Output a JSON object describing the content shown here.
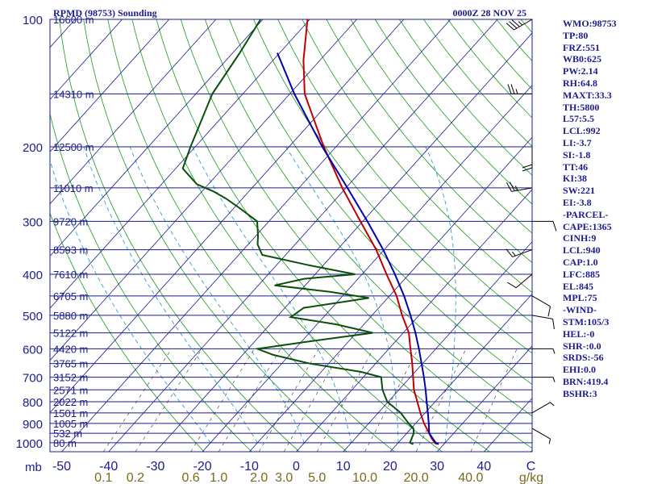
{
  "header": {
    "station": "RPMD (98753) Sounding",
    "time": "0000Z 28 NOV 25"
  },
  "indices": [
    "WMO:98753",
    "TP:80",
    "FRZ:551",
    "WB0:625",
    "PW:2.14",
    "RH:64.8",
    "MAXT:33.3",
    "TH:5800",
    "L57:5.5",
    "LCL:992",
    "LI:-3.7",
    "SI:-1.8",
    "TT:46",
    "KI:38",
    "SW:221",
    "EI:-3.8",
    "-PARCEL-",
    "CAPE:1365",
    "CINH:9",
    "LCL:940",
    "CAP:1.0",
    "LFC:885",
    "EL:845",
    "MPL:75",
    "-WIND-",
    "STM:105/3",
    "HEL:-0",
    "SHR-:0.0",
    "SRDS:-56",
    "EHI:0.0",
    "BRN:419.4",
    "BSHR:3"
  ],
  "colors": {
    "frame": "#1c1c8c",
    "isobar": "#1c1c8c",
    "isotherm": "#1c1c8c",
    "dry_adiabat": "#1a9a1a",
    "moist_adiabat": "#2aa0d0",
    "mixing_ratio": "#333333",
    "temperature": "#c00000",
    "dewpoint": "#0b4f0b",
    "parcel": "#0000b0",
    "wind_barb": "#000000"
  },
  "chart_data": {
    "type": "line",
    "title": "RPMD (98753) Sounding",
    "xlabel": "",
    "ylabel": "mb",
    "pressure_ticks": [
      100,
      200,
      300,
      400,
      500,
      600,
      700,
      800,
      900,
      1000
    ],
    "temperature_ticks": [
      -50,
      -40,
      -30,
      -20,
      -10,
      0,
      10,
      20,
      30,
      40,
      50
    ],
    "temperature_tick_labels": [
      "-50",
      "-40",
      "-30",
      "-20",
      "-10",
      "0",
      "10",
      "20",
      "30",
      "40",
      "C"
    ],
    "mixing_ratio_ticks": [
      0.1,
      0.2,
      0.6,
      1.0,
      2.0,
      3.0,
      5.0,
      10.0,
      20.0,
      40.0
    ],
    "mixing_ratio_tick_labels": [
      "0.1",
      "0.2",
      "0.6",
      "1.0",
      "2.0",
      "3.0",
      "5.0",
      "10.0",
      "20.0",
      "40.0"
    ],
    "mixing_ratio_unit": "g/kg",
    "height_levels": [
      {
        "p": 100,
        "label": "16600 m"
      },
      {
        "p": 150,
        "label": "14310 m"
      },
      {
        "p": 200,
        "label": "12500 m"
      },
      {
        "p": 250,
        "label": "11010 m"
      },
      {
        "p": 300,
        "label": "9720 m"
      },
      {
        "p": 350,
        "label": "8593 m"
      },
      {
        "p": 400,
        "label": "7610 m"
      },
      {
        "p": 450,
        "label": "6705 m"
      },
      {
        "p": 500,
        "label": "5880 m"
      },
      {
        "p": 550,
        "label": "5122 m"
      },
      {
        "p": 600,
        "label": "4420 m"
      },
      {
        "p": 650,
        "label": "3765 m"
      },
      {
        "p": 700,
        "label": "3152 m"
      },
      {
        "p": 750,
        "label": "2571 m"
      },
      {
        "p": 800,
        "label": "2022 m"
      },
      {
        "p": 850,
        "label": "1501 m"
      },
      {
        "p": 900,
        "label": "1005 m"
      },
      {
        "p": 950,
        "label": "532 m"
      },
      {
        "p": 1000,
        "label": "80 m"
      }
    ],
    "series": [
      {
        "key": "temperature",
        "points": [
          [
            1008,
            28.5
          ],
          [
            1000,
            27.8
          ],
          [
            975,
            26.2
          ],
          [
            950,
            24.8
          ],
          [
            925,
            23.3
          ],
          [
            900,
            21.8
          ],
          [
            850,
            19.0
          ],
          [
            800,
            16.2
          ],
          [
            750,
            13.2
          ],
          [
            700,
            10.6
          ],
          [
            650,
            7.8
          ],
          [
            600,
            4.6
          ],
          [
            550,
            1.2
          ],
          [
            500,
            -3.6
          ],
          [
            450,
            -8.5
          ],
          [
            400,
            -14.8
          ],
          [
            350,
            -21.7
          ],
          [
            300,
            -30.5
          ],
          [
            250,
            -40.8
          ],
          [
            200,
            -52.6
          ],
          [
            150,
            -66.8
          ],
          [
            125,
            -73.5
          ],
          [
            100,
            -80.5
          ]
        ]
      },
      {
        "key": "dewpoint",
        "points": [
          [
            1008,
            23.5
          ],
          [
            1000,
            22.5
          ],
          [
            975,
            22.0
          ],
          [
            950,
            21.5
          ],
          [
            925,
            20.5
          ],
          [
            900,
            18.5
          ],
          [
            850,
            14.8
          ],
          [
            800,
            9.8
          ],
          [
            750,
            6.5
          ],
          [
            700,
            3.8
          ],
          [
            680,
            -1.5
          ],
          [
            650,
            -14.0
          ],
          [
            620,
            -23.5
          ],
          [
            600,
            -28.0
          ],
          [
            580,
            -20.0
          ],
          [
            550,
            -6.5
          ],
          [
            525,
            -16.0
          ],
          [
            505,
            -27.0
          ],
          [
            480,
            -26.0
          ],
          [
            455,
            -14.0
          ],
          [
            440,
            -23.5
          ],
          [
            425,
            -36.5
          ],
          [
            410,
            -31.5
          ],
          [
            400,
            -21.5
          ],
          [
            380,
            -33.5
          ],
          [
            360,
            -45.0
          ],
          [
            340,
            -48.0
          ],
          [
            325,
            -49.5
          ],
          [
            300,
            -52.5
          ],
          [
            280,
            -58.5
          ],
          [
            265,
            -63.5
          ],
          [
            255,
            -67.5
          ],
          [
            245,
            -72.5
          ],
          [
            225,
            -78.5
          ],
          [
            200,
            -81.0
          ],
          [
            150,
            -86.5
          ],
          [
            120,
            -88.5
          ],
          [
            100,
            -90.5
          ]
        ]
      },
      {
        "key": "parcel",
        "points": [
          [
            1008,
            28.9
          ],
          [
            1000,
            28.0
          ],
          [
            975,
            26.4
          ],
          [
            950,
            24.8
          ],
          [
            925,
            23.8
          ],
          [
            900,
            22.8
          ],
          [
            850,
            20.6
          ],
          [
            800,
            18.2
          ],
          [
            750,
            15.7
          ],
          [
            700,
            12.9
          ],
          [
            650,
            9.8
          ],
          [
            600,
            6.4
          ],
          [
            550,
            2.6
          ],
          [
            500,
            -1.8
          ],
          [
            450,
            -6.9
          ],
          [
            400,
            -13.0
          ],
          [
            350,
            -20.2
          ],
          [
            300,
            -29.0
          ],
          [
            250,
            -39.7
          ],
          [
            200,
            -52.9
          ],
          [
            150,
            -69.0
          ],
          [
            120,
            -80.5
          ]
        ]
      }
    ],
    "wind_profile": [
      {
        "p": 100,
        "dir": 240,
        "spd": 35
      },
      {
        "p": 150,
        "dir": 270,
        "spd": 25
      },
      {
        "p": 200,
        "dir": 180,
        "spd": 20
      },
      {
        "p": 250,
        "dir": 260,
        "spd": 25
      },
      {
        "p": 300,
        "dir": 90,
        "spd": 10
      },
      {
        "p": 350,
        "dir": 250,
        "spd": 15
      },
      {
        "p": 400,
        "dir": 230,
        "spd": 10
      },
      {
        "p": 450,
        "dir": 120,
        "spd": 10
      },
      {
        "p": 500,
        "dir": 100,
        "spd": 10
      },
      {
        "p": 600,
        "dir": 90,
        "spd": 5
      },
      {
        "p": 700,
        "dir": 90,
        "spd": 5
      },
      {
        "p": 850,
        "dir": 60,
        "spd": 5
      },
      {
        "p": 925,
        "dir": 120,
        "spd": 5
      }
    ]
  }
}
